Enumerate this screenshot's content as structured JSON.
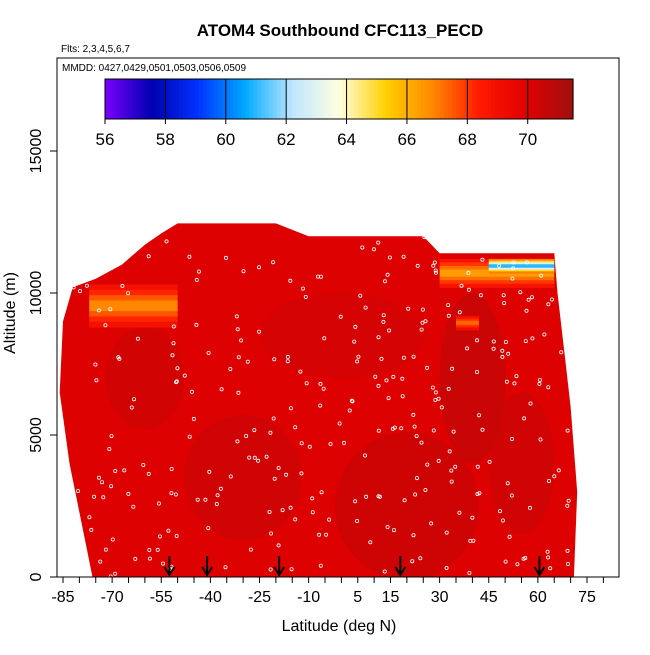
{
  "chart_data": {
    "type": "heatmap",
    "title": "ATOM4 Southbound CFC113_PECD",
    "subtitle_flights": "Flts: 2,3,4,5,6,7",
    "subtitle_dates": "MMDD: 0427,0429,0501,0503,0506,0509",
    "xlabel": "Latitude (deg N)",
    "ylabel": "Altitude (m)",
    "xlim": [
      -88,
      80
    ],
    "ylim": [
      0,
      17500
    ],
    "x_ticks": [
      "-85",
      "-70",
      "-55",
      "-40",
      "-25",
      "-10",
      "5",
      "15",
      "30",
      "45",
      "60",
      "75"
    ],
    "x_tick_values": [
      -85,
      -70,
      -55,
      -40,
      -25,
      -10,
      5,
      15,
      30,
      45,
      60,
      75
    ],
    "y_ticks": [
      "0",
      "5000",
      "10000",
      "15000"
    ],
    "y_tick_values": [
      0,
      5000,
      10000,
      15000
    ],
    "colorbar": {
      "min": 56,
      "max": 71.5,
      "tick_labels": [
        "56",
        "58",
        "60",
        "62",
        "64",
        "66",
        "68",
        "70"
      ],
      "tick_values": [
        56,
        58,
        60,
        62,
        64,
        66,
        68,
        70
      ],
      "colors": [
        "#7a00ff",
        "#0000b0",
        "#0033ff",
        "#00aaff",
        "#bfe6ff",
        "#ffffe0",
        "#ffd000",
        "#ff8800",
        "#ff1a00",
        "#e00000",
        "#a01010"
      ]
    },
    "grid": false,
    "arrow_latitudes": [
      -52.5,
      -41,
      -19,
      18,
      60.5
    ],
    "field_note": "Values approximate: ~70 throughout the domain; ~66-67 in bands near 10000 m (lat -77 to -50) and above 10500 m (lat 30 to 65); ~58-62 near 11000 m at 50-65 N.",
    "regions": [
      {
        "lat_range": [
          -88,
          75
        ],
        "alt_range": [
          0,
          12400
        ],
        "value": 70
      },
      {
        "lat_range": [
          -77,
          -50
        ],
        "alt_range": [
          8800,
          10300
        ],
        "value": 66.5
      },
      {
        "lat_range": [
          30,
          65
        ],
        "alt_range": [
          10200,
          11200
        ],
        "value": 66
      },
      {
        "lat_range": [
          45,
          65
        ],
        "alt_range": [
          10700,
          11200
        ],
        "value": 60
      },
      {
        "lat_range": [
          35,
          42
        ],
        "alt_range": [
          8700,
          9200
        ],
        "value": 67
      }
    ],
    "points_note": "White circle markers indicate sample locations."
  }
}
